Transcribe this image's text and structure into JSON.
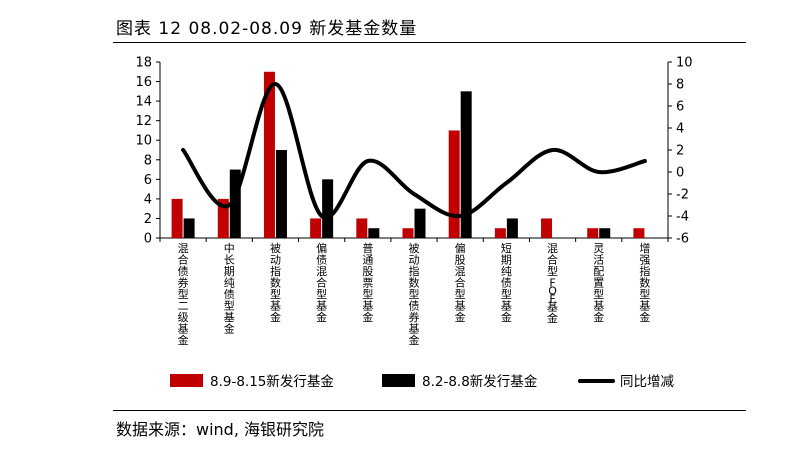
{
  "figure": {
    "title": "图表 12 08.02-08.09 新发基金数量",
    "source": "数据来源：wind, 海银研究院"
  },
  "chart_data": {
    "type": "bar",
    "title": "",
    "categories": [
      "混合债券型二级基金",
      "中长期纯债型基金",
      "被动指数型基金",
      "偏债混合型基金",
      "普通股票型基金",
      "被动指数型债券基金",
      "偏股混合型基金",
      "短期纯债型基金",
      "混合型FOF基金",
      "灵活配置型基金",
      "增强指数型基金"
    ],
    "series": [
      {
        "name": "8.9-8.15新发行基金",
        "type": "bar",
        "axis": "left",
        "color": "#c00000",
        "values": [
          4,
          4,
          17,
          2,
          2,
          1,
          11,
          1,
          2,
          1,
          1
        ]
      },
      {
        "name": "8.2-8.8新发行基金",
        "type": "bar",
        "axis": "left",
        "color": "#000000",
        "values": [
          2,
          7,
          9,
          6,
          1,
          3,
          15,
          2,
          0,
          1,
          0
        ]
      },
      {
        "name": "同比增减",
        "type": "line",
        "axis": "right",
        "color": "#000000",
        "values": [
          2,
          -3,
          8,
          -4,
          1,
          -2,
          -4,
          -1,
          2,
          0,
          1
        ]
      }
    ],
    "y_left": {
      "min": 0,
      "max": 18,
      "ticks": [
        0,
        2,
        4,
        6,
        8,
        10,
        12,
        14,
        16,
        18
      ]
    },
    "y_right": {
      "min": -6,
      "max": 10,
      "ticks": [
        -6,
        -4,
        -2,
        0,
        2,
        4,
        6,
        8,
        10
      ]
    },
    "legend": {
      "position": "bottom"
    },
    "grid": false
  }
}
